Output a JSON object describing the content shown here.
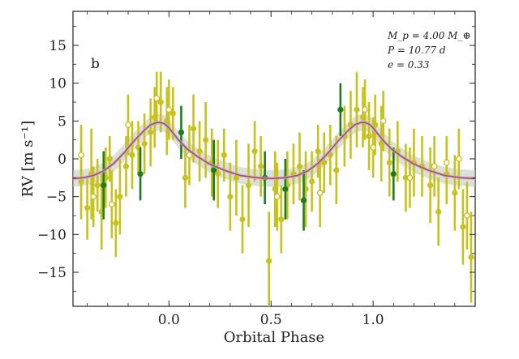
{
  "chart_data": {
    "type": "scatter",
    "panel_label": "b",
    "xlabel": "Orbital Phase",
    "ylabel": "RV [m s⁻¹]",
    "xlim": [
      -0.47,
      1.5
    ],
    "ylim": [
      -19.5,
      19.5
    ],
    "xticks": [
      0.0,
      0.5,
      1.0
    ],
    "xtick_labels": [
      "0.0",
      "0.5",
      "1.0"
    ],
    "yticks": [
      15,
      10,
      5,
      0,
      -5,
      -10,
      -15
    ],
    "ytick_labels": [
      "15",
      "10",
      "5",
      "0",
      "−5",
      "−10",
      "−15"
    ],
    "annotation": [
      "M_p = 4.00 M_⊕",
      "P = 10.77 d",
      "e = 0.33"
    ],
    "colors": {
      "olive": "#c8c21c",
      "green": "#1e7d1e",
      "model": "#8a5a7a",
      "band": "#b9c9b9"
    },
    "model": {
      "phase": [
        -0.47,
        -0.42,
        -0.37,
        -0.32,
        -0.27,
        -0.22,
        -0.17,
        -0.12,
        -0.09,
        -0.06,
        -0.04,
        -0.02,
        0.0,
        0.02,
        0.05,
        0.09,
        0.14,
        0.2,
        0.27,
        0.35,
        0.43,
        0.5,
        0.57,
        0.63,
        0.68,
        0.73,
        0.78,
        0.83,
        0.88,
        0.91,
        0.94,
        0.96,
        0.98,
        1.0,
        1.02,
        1.05,
        1.09,
        1.14,
        1.2,
        1.27,
        1.35,
        1.43,
        1.5
      ],
      "rv": [
        -2.6,
        -2.5,
        -2.2,
        -1.6,
        -0.6,
        0.8,
        2.4,
        3.8,
        4.5,
        4.8,
        4.8,
        4.6,
        4.1,
        3.4,
        2.4,
        1.3,
        0.3,
        -0.7,
        -1.5,
        -2.2,
        -2.5,
        -2.6,
        -2.5,
        -2.2,
        -1.6,
        -0.6,
        0.8,
        2.4,
        3.8,
        4.5,
        4.8,
        4.8,
        4.6,
        4.1,
        3.4,
        2.4,
        1.3,
        0.3,
        -0.7,
        -1.5,
        -2.2,
        -2.5,
        -2.6
      ]
    },
    "series": [
      {
        "name": "",
        "marker": "filled",
        "color": "olive",
        "points": [
          {
            "x": -0.43,
            "y": -3.0,
            "err": 5.0
          },
          {
            "x": -0.4,
            "y": -6.5,
            "err": 4.2
          },
          {
            "x": -0.38,
            "y": -2.0,
            "err": 6.0
          },
          {
            "x": -0.35,
            "y": -3.5,
            "err": 3.5
          },
          {
            "x": -0.33,
            "y": -7.0,
            "err": 5.0
          },
          {
            "x": -0.31,
            "y": -2.5,
            "err": 4.0
          },
          {
            "x": -0.29,
            "y": 0.0,
            "err": 3.0
          },
          {
            "x": -0.26,
            "y": -8.5,
            "err": 4.5
          },
          {
            "x": -0.24,
            "y": -5.0,
            "err": 5.0
          },
          {
            "x": -0.21,
            "y": -1.0,
            "err": 4.0
          },
          {
            "x": -0.18,
            "y": 0.5,
            "err": 4.5
          },
          {
            "x": -0.15,
            "y": 1.5,
            "err": 3.5
          },
          {
            "x": -0.12,
            "y": 2.0,
            "err": 4.0
          },
          {
            "x": -0.09,
            "y": 3.5,
            "err": 4.5
          },
          {
            "x": -0.07,
            "y": 5.5,
            "err": 4.0
          },
          {
            "x": -0.04,
            "y": 7.5,
            "err": 4.0
          },
          {
            "x": -0.01,
            "y": 5.0,
            "err": 4.5
          },
          {
            "x": 0.02,
            "y": 6.0,
            "err": 3.5
          },
          {
            "x": 0.08,
            "y": -2.5,
            "err": 4.0
          },
          {
            "x": 0.12,
            "y": 4.0,
            "err": 4.5
          },
          {
            "x": 0.15,
            "y": 1.0,
            "err": 4.0
          },
          {
            "x": 0.18,
            "y": 2.5,
            "err": 5.0
          },
          {
            "x": 0.21,
            "y": -0.5,
            "err": 4.5
          },
          {
            "x": 0.24,
            "y": -2.0,
            "err": 4.5
          },
          {
            "x": 0.27,
            "y": 0.5,
            "err": 3.5
          },
          {
            "x": 0.3,
            "y": -5.0,
            "err": 4.5
          },
          {
            "x": 0.33,
            "y": -2.5,
            "err": 5.0
          },
          {
            "x": 0.36,
            "y": -8.0,
            "err": 4.5
          },
          {
            "x": 0.39,
            "y": -3.5,
            "err": 5.5
          },
          {
            "x": 0.42,
            "y": 1.0,
            "err": 4.0
          },
          {
            "x": 0.45,
            "y": -1.0,
            "err": 4.0
          },
          {
            "x": 0.49,
            "y": -13.5,
            "err": 6.5
          },
          {
            "x": 0.52,
            "y": -4.0,
            "err": 5.0
          },
          {
            "x": 0.55,
            "y": -8.0,
            "err": 4.5
          },
          {
            "x": 0.58,
            "y": -3.5,
            "err": 4.5
          },
          {
            "x": 0.61,
            "y": -2.0,
            "err": 4.0
          },
          {
            "x": 0.64,
            "y": -1.0,
            "err": 4.5
          },
          {
            "x": 0.67,
            "y": -4.0,
            "err": 5.0
          },
          {
            "x": 0.7,
            "y": -3.0,
            "err": 4.0
          },
          {
            "x": 0.73,
            "y": 1.0,
            "err": 3.5
          },
          {
            "x": 0.76,
            "y": -0.5,
            "err": 4.0
          },
          {
            "x": 0.79,
            "y": 0.5,
            "err": 4.0
          },
          {
            "x": 0.82,
            "y": -1.5,
            "err": 4.5
          },
          {
            "x": 0.86,
            "y": 3.0,
            "err": 4.0
          },
          {
            "x": 0.89,
            "y": 4.5,
            "err": 4.5
          },
          {
            "x": 0.92,
            "y": 6.5,
            "err": 5.0
          },
          {
            "x": 0.95,
            "y": 5.5,
            "err": 4.0
          },
          {
            "x": 0.98,
            "y": 3.0,
            "err": 4.5
          },
          {
            "x": 1.01,
            "y": 4.5,
            "err": 4.0
          },
          {
            "x": 1.04,
            "y": 2.0,
            "err": 5.0
          },
          {
            "x": 1.08,
            "y": -0.5,
            "err": 4.5
          },
          {
            "x": 1.12,
            "y": 1.0,
            "err": 4.0
          },
          {
            "x": 1.16,
            "y": -2.5,
            "err": 4.5
          },
          {
            "x": 1.2,
            "y": -0.5,
            "err": 4.5
          },
          {
            "x": 1.24,
            "y": -1.0,
            "err": 4.0
          },
          {
            "x": 1.28,
            "y": -3.5,
            "err": 5.0
          },
          {
            "x": 1.32,
            "y": -7.0,
            "err": 4.5
          },
          {
            "x": 1.36,
            "y": -2.0,
            "err": 4.0
          },
          {
            "x": 1.4,
            "y": -4.5,
            "err": 5.0
          },
          {
            "x": 1.44,
            "y": -9.0,
            "err": 5.0
          },
          {
            "x": 1.48,
            "y": -13.0,
            "err": 6.0
          }
        ]
      },
      {
        "name": "",
        "marker": "filled",
        "color": "green",
        "points": [
          {
            "x": -0.32,
            "y": -3.5,
            "err": 4.5
          },
          {
            "x": -0.14,
            "y": -2.0,
            "err": 3.5
          },
          {
            "x": 0.06,
            "y": 3.5,
            "err": 3.5
          },
          {
            "x": 0.22,
            "y": -1.5,
            "err": 4.0
          },
          {
            "x": 0.47,
            "y": -2.5,
            "err": 3.5
          },
          {
            "x": 0.57,
            "y": -4.0,
            "err": 4.0
          },
          {
            "x": 0.66,
            "y": -5.5,
            "err": 4.0
          },
          {
            "x": 0.84,
            "y": 6.5,
            "err": 3.5
          },
          {
            "x": 1.1,
            "y": -2.0,
            "err": 3.5
          }
        ]
      },
      {
        "name": "",
        "marker": "open",
        "color": "olive",
        "points": [
          {
            "x": -0.43,
            "y": 0.5,
            "err": 4.0
          },
          {
            "x": -0.37,
            "y": -5.0,
            "err": 4.0
          },
          {
            "x": -0.28,
            "y": -6.0,
            "err": 4.5
          },
          {
            "x": -0.2,
            "y": 4.5,
            "err": 4.0
          },
          {
            "x": -0.06,
            "y": 8.0,
            "err": 3.5
          },
          {
            "x": 0.0,
            "y": 6.5,
            "err": 4.0
          },
          {
            "x": 0.1,
            "y": 0.5,
            "err": 4.0
          },
          {
            "x": 0.53,
            "y": -5.0,
            "err": 4.5
          },
          {
            "x": 0.74,
            "y": -4.5,
            "err": 4.5
          },
          {
            "x": 0.96,
            "y": 6.5,
            "err": 4.0
          },
          {
            "x": 1.0,
            "y": 1.5,
            "err": 4.0
          },
          {
            "x": 1.05,
            "y": 5.0,
            "err": 4.0
          },
          {
            "x": 1.18,
            "y": -2.5,
            "err": 4.0
          },
          {
            "x": 1.3,
            "y": -1.0,
            "err": 4.0
          },
          {
            "x": 1.36,
            "y": -0.5,
            "err": 3.5
          },
          {
            "x": 1.42,
            "y": 0.0,
            "err": 4.0
          },
          {
            "x": 1.46,
            "y": -7.5,
            "err": 4.5
          }
        ]
      }
    ]
  }
}
